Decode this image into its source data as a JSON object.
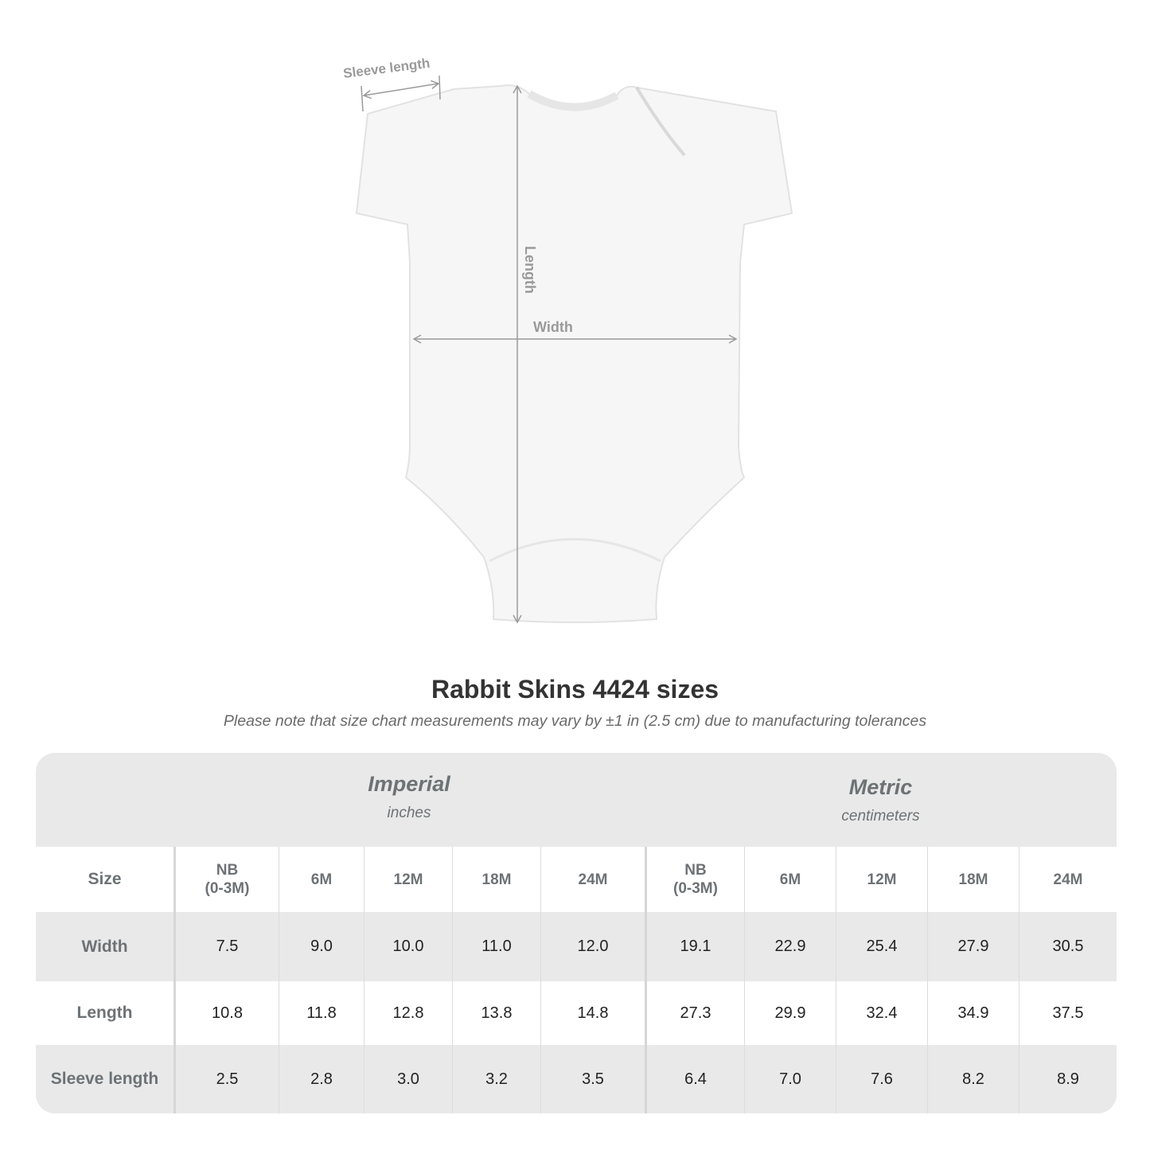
{
  "diagram": {
    "labels": {
      "sleeve_length": "Sleeve length",
      "length": "Length",
      "width": "Width"
    },
    "line_color": "#9a9a9a"
  },
  "title": "Rabbit Skins 4424 sizes",
  "subtitle": "Please note that size chart measurements may vary by ±1 in (2.5 cm) due to manufacturing tolerances",
  "table": {
    "imperial": {
      "label": "Imperial",
      "unit": "inches"
    },
    "metric": {
      "label": "Metric",
      "unit": "centimeters"
    },
    "header": [
      "Size",
      "NB\n(0-3M)",
      "6M",
      "12M",
      "18M",
      "24M",
      "NB\n(0-3M)",
      "6M",
      "12M",
      "18M",
      "24M"
    ],
    "rows": [
      [
        "Width",
        "7.5",
        "9.0",
        "10.0",
        "11.0",
        "12.0",
        "19.1",
        "22.9",
        "25.4",
        "27.9",
        "30.5"
      ],
      [
        "Length",
        "10.8",
        "11.8",
        "12.8",
        "13.8",
        "14.8",
        "27.3",
        "29.9",
        "32.4",
        "34.9",
        "37.5"
      ],
      [
        "Sleeve length",
        "2.5",
        "2.8",
        "3.0",
        "3.2",
        "3.5",
        "6.4",
        "7.0",
        "7.6",
        "8.2",
        "8.9"
      ]
    ]
  }
}
